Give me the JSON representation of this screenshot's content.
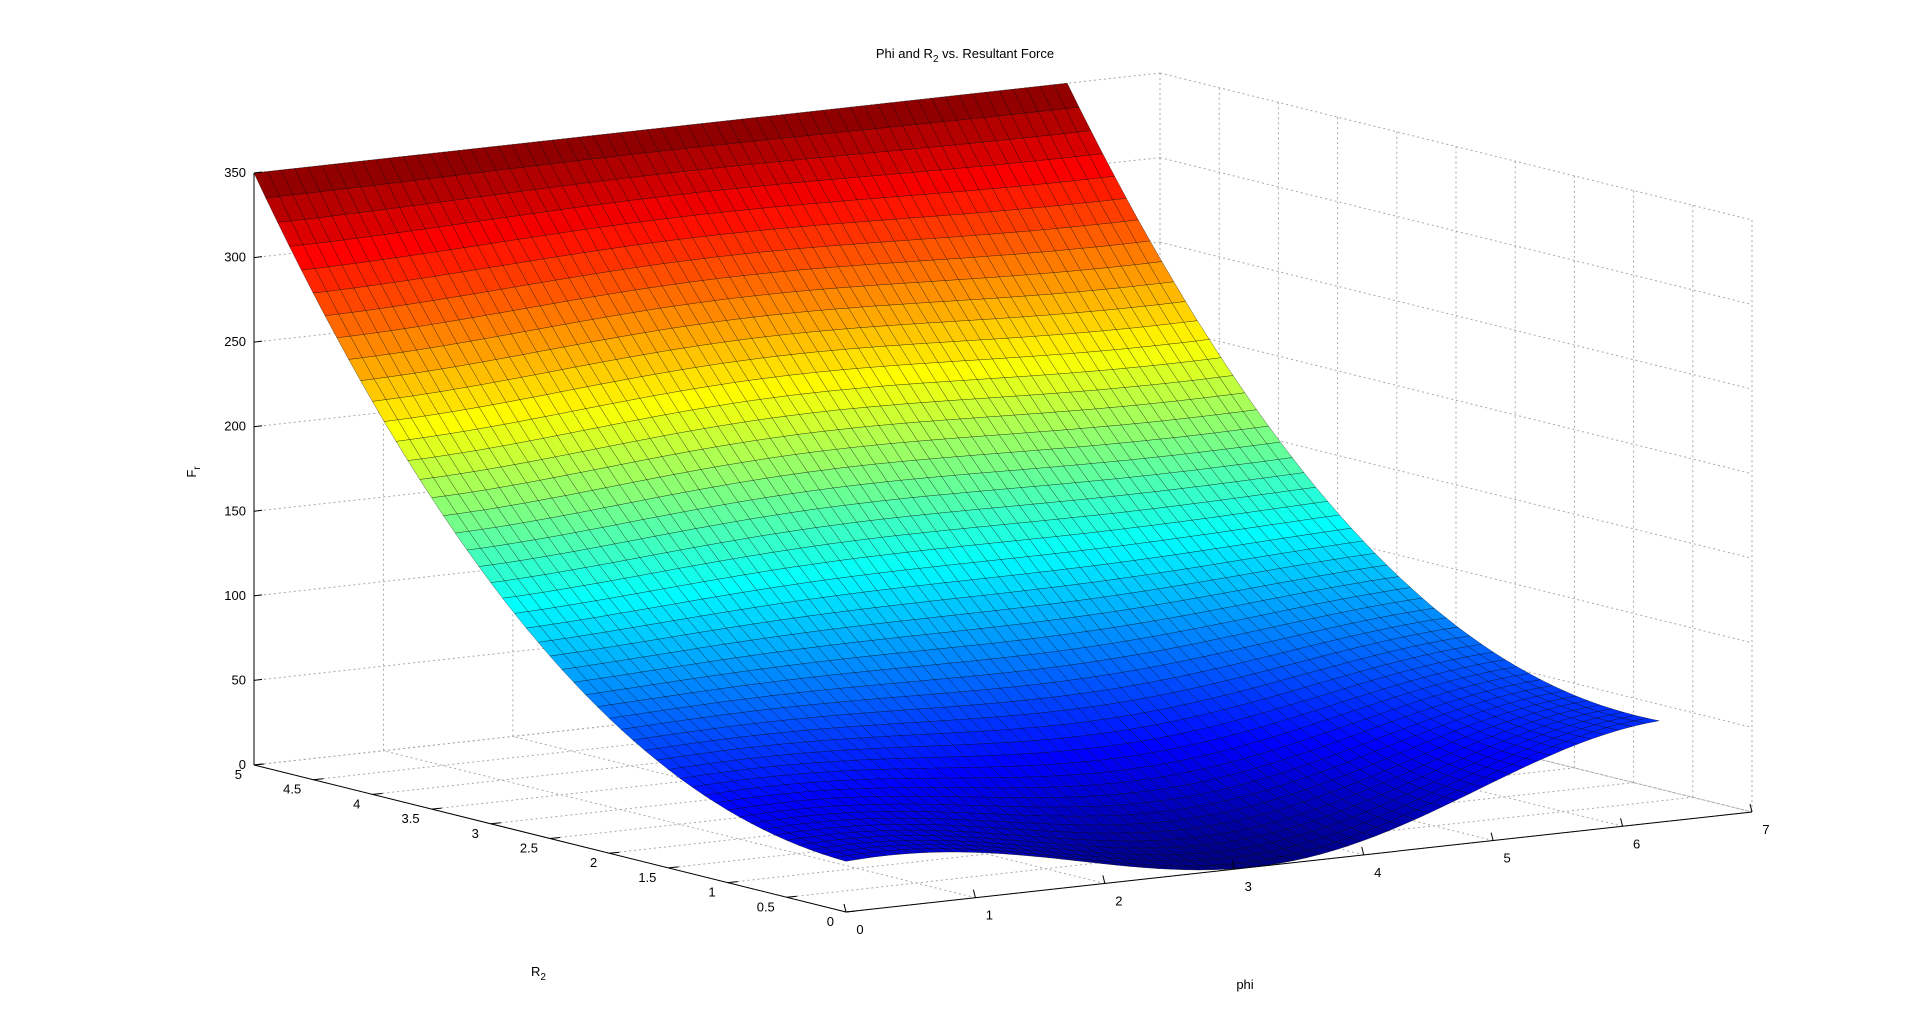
{
  "figure": {
    "title": {
      "main": "Phi and R",
      "sub": "2",
      "rest": " vs. Resultant Force"
    },
    "zlabel": {
      "main": "F",
      "sub": "r"
    },
    "ylabel": {
      "main": "R",
      "sub": "2"
    },
    "xlabel": "phi"
  },
  "chart_data": {
    "type": "surface",
    "title": "Phi and R2 vs. Resultant Force",
    "xlabel": "phi",
    "ylabel": "R2",
    "zlabel": "Fr",
    "xlim": [
      0,
      7
    ],
    "ylim": [
      0,
      5
    ],
    "zlim": [
      0,
      350
    ],
    "x_ticks": [
      0,
      1,
      2,
      3,
      4,
      5,
      6,
      7
    ],
    "y_ticks": [
      0,
      0.5,
      1,
      1.5,
      2,
      2.5,
      3,
      3.5,
      4,
      4.5,
      5
    ],
    "z_ticks": [
      0,
      50,
      100,
      150,
      200,
      250,
      300,
      350
    ],
    "x_range": [
      0,
      6.283
    ],
    "y_range": [
      0,
      5
    ],
    "colormap": "jet",
    "grid": true,
    "surface_values": {
      "description_points": [
        {
          "phi": 0,
          "R2": 5,
          "Fr": 350
        },
        {
          "phi": 3.14,
          "R2": 5,
          "Fr": 350
        },
        {
          "phi": 6.28,
          "R2": 5,
          "Fr": 350
        },
        {
          "phi": 0,
          "R2": 0,
          "Fr": 30
        },
        {
          "phi": 3.14,
          "R2": 0,
          "Fr": 0
        },
        {
          "phi": 6.28,
          "R2": 0,
          "Fr": 60
        },
        {
          "phi": 1.57,
          "R2": 2.5,
          "Fr": 175
        }
      ]
    },
    "colors": {
      "grid": "#a8a8a8",
      "axis": "#000000",
      "mesh": "#000000"
    }
  }
}
